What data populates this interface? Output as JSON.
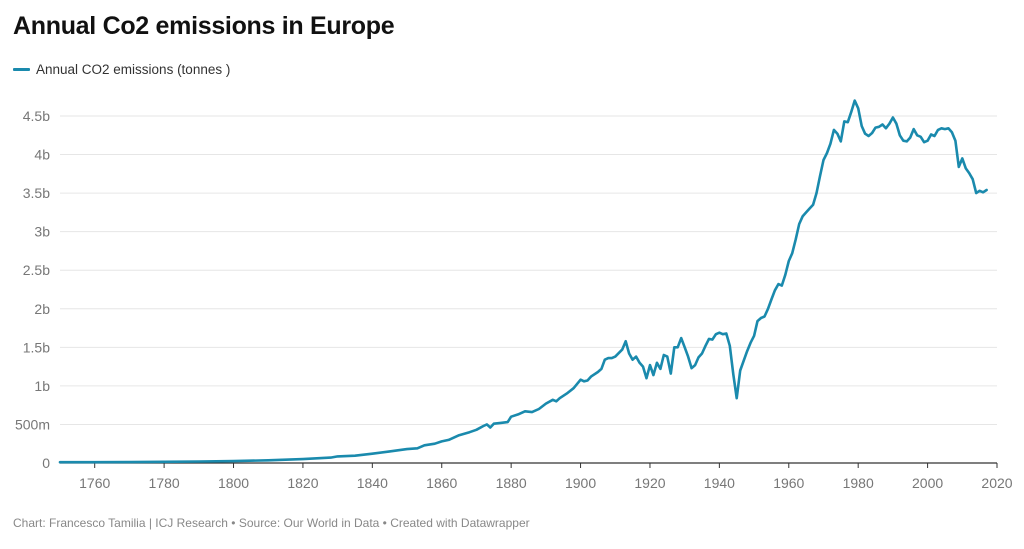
{
  "title": "Annual Co2 emissions in Europe",
  "footer": "Chart: Francesco Tamilia | ICJ Research • Source: Our World in Data • Created with Datawrapper",
  "colors": {
    "line": "#1a8aad",
    "grid": "#e6e6e6",
    "axis": "#333333",
    "tick_text": "#777777"
  },
  "chart_data": {
    "type": "line",
    "title": "Annual Co2 emissions in Europe",
    "xlabel": "",
    "ylabel": "",
    "xlim": [
      1750,
      2020
    ],
    "ylim": [
      0,
      4.5
    ],
    "grid": true,
    "legend": "top-left",
    "y_unit": "billion tonnes",
    "y_ticks": [
      0,
      0.5,
      1,
      1.5,
      2,
      2.5,
      3,
      3.5,
      4,
      4.5
    ],
    "y_tick_labels": [
      "0",
      "500m",
      "1b",
      "1.5b",
      "2b",
      "2.5b",
      "3b",
      "3.5b",
      "4b",
      "4.5b"
    ],
    "x_ticks": [
      1760,
      1780,
      1800,
      1820,
      1840,
      1860,
      1880,
      1900,
      1920,
      1940,
      1960,
      1980,
      2000,
      2020
    ],
    "x_tick_labels": [
      "1760",
      "1780",
      "1800",
      "1820",
      "1840",
      "1860",
      "1880",
      "1900",
      "1920",
      "1940",
      "1960",
      "1980",
      "2000",
      "2020"
    ],
    "series": [
      {
        "name": "Annual CO2 emissions (tonnes )",
        "points": [
          [
            1750,
            0.01
          ],
          [
            1760,
            0.01
          ],
          [
            1770,
            0.012
          ],
          [
            1780,
            0.015
          ],
          [
            1790,
            0.02
          ],
          [
            1800,
            0.025
          ],
          [
            1810,
            0.035
          ],
          [
            1820,
            0.05
          ],
          [
            1828,
            0.07
          ],
          [
            1830,
            0.085
          ],
          [
            1835,
            0.095
          ],
          [
            1840,
            0.12
          ],
          [
            1845,
            0.15
          ],
          [
            1850,
            0.18
          ],
          [
            1853,
            0.19
          ],
          [
            1855,
            0.23
          ],
          [
            1858,
            0.25
          ],
          [
            1860,
            0.28
          ],
          [
            1862,
            0.3
          ],
          [
            1865,
            0.36
          ],
          [
            1868,
            0.4
          ],
          [
            1870,
            0.43
          ],
          [
            1872,
            0.48
          ],
          [
            1873,
            0.5
          ],
          [
            1874,
            0.46
          ],
          [
            1875,
            0.51
          ],
          [
            1877,
            0.52
          ],
          [
            1879,
            0.53
          ],
          [
            1880,
            0.6
          ],
          [
            1882,
            0.63
          ],
          [
            1884,
            0.67
          ],
          [
            1886,
            0.66
          ],
          [
            1888,
            0.7
          ],
          [
            1890,
            0.77
          ],
          [
            1892,
            0.82
          ],
          [
            1893,
            0.8
          ],
          [
            1894,
            0.84
          ],
          [
            1896,
            0.9
          ],
          [
            1898,
            0.97
          ],
          [
            1900,
            1.08
          ],
          [
            1901,
            1.06
          ],
          [
            1902,
            1.07
          ],
          [
            1903,
            1.12
          ],
          [
            1905,
            1.18
          ],
          [
            1906,
            1.22
          ],
          [
            1907,
            1.34
          ],
          [
            1908,
            1.36
          ],
          [
            1909,
            1.36
          ],
          [
            1910,
            1.38
          ],
          [
            1912,
            1.47
          ],
          [
            1913,
            1.58
          ],
          [
            1914,
            1.42
          ],
          [
            1915,
            1.34
          ],
          [
            1916,
            1.38
          ],
          [
            1917,
            1.3
          ],
          [
            1918,
            1.25
          ],
          [
            1919,
            1.1
          ],
          [
            1920,
            1.27
          ],
          [
            1921,
            1.14
          ],
          [
            1922,
            1.3
          ],
          [
            1923,
            1.22
          ],
          [
            1924,
            1.4
          ],
          [
            1925,
            1.38
          ],
          [
            1926,
            1.16
          ],
          [
            1927,
            1.5
          ],
          [
            1928,
            1.5
          ],
          [
            1929,
            1.62
          ],
          [
            1930,
            1.5
          ],
          [
            1931,
            1.38
          ],
          [
            1932,
            1.23
          ],
          [
            1933,
            1.27
          ],
          [
            1934,
            1.37
          ],
          [
            1935,
            1.42
          ],
          [
            1936,
            1.52
          ],
          [
            1937,
            1.61
          ],
          [
            1938,
            1.6
          ],
          [
            1939,
            1.67
          ],
          [
            1940,
            1.69
          ],
          [
            1941,
            1.67
          ],
          [
            1942,
            1.68
          ],
          [
            1943,
            1.52
          ],
          [
            1944,
            1.15
          ],
          [
            1945,
            0.84
          ],
          [
            1946,
            1.2
          ],
          [
            1948,
            1.45
          ],
          [
            1949,
            1.56
          ],
          [
            1950,
            1.65
          ],
          [
            1951,
            1.84
          ],
          [
            1952,
            1.88
          ],
          [
            1953,
            1.9
          ],
          [
            1954,
            2.0
          ],
          [
            1955,
            2.12
          ],
          [
            1956,
            2.24
          ],
          [
            1957,
            2.32
          ],
          [
            1958,
            2.3
          ],
          [
            1959,
            2.44
          ],
          [
            1960,
            2.62
          ],
          [
            1961,
            2.72
          ],
          [
            1962,
            2.9
          ],
          [
            1963,
            3.1
          ],
          [
            1964,
            3.2
          ],
          [
            1965,
            3.25
          ],
          [
            1966,
            3.3
          ],
          [
            1967,
            3.35
          ],
          [
            1968,
            3.5
          ],
          [
            1969,
            3.72
          ],
          [
            1970,
            3.93
          ],
          [
            1971,
            4.02
          ],
          [
            1972,
            4.14
          ],
          [
            1973,
            4.32
          ],
          [
            1974,
            4.27
          ],
          [
            1975,
            4.17
          ],
          [
            1976,
            4.43
          ],
          [
            1977,
            4.42
          ],
          [
            1978,
            4.55
          ],
          [
            1979,
            4.7
          ],
          [
            1980,
            4.6
          ],
          [
            1981,
            4.37
          ],
          [
            1982,
            4.27
          ],
          [
            1983,
            4.24
          ],
          [
            1984,
            4.28
          ],
          [
            1985,
            4.35
          ],
          [
            1986,
            4.36
          ],
          [
            1987,
            4.39
          ],
          [
            1988,
            4.34
          ],
          [
            1989,
            4.4
          ],
          [
            1990,
            4.48
          ],
          [
            1991,
            4.4
          ],
          [
            1992,
            4.25
          ],
          [
            1993,
            4.18
          ],
          [
            1994,
            4.17
          ],
          [
            1995,
            4.22
          ],
          [
            1996,
            4.33
          ],
          [
            1997,
            4.25
          ],
          [
            1998,
            4.23
          ],
          [
            1999,
            4.16
          ],
          [
            2000,
            4.18
          ],
          [
            2001,
            4.26
          ],
          [
            2002,
            4.24
          ],
          [
            2003,
            4.32
          ],
          [
            2004,
            4.34
          ],
          [
            2005,
            4.33
          ],
          [
            2006,
            4.34
          ],
          [
            2007,
            4.29
          ],
          [
            2008,
            4.18
          ],
          [
            2009,
            3.84
          ],
          [
            2010,
            3.95
          ],
          [
            2011,
            3.82
          ],
          [
            2012,
            3.76
          ],
          [
            2013,
            3.68
          ],
          [
            2014,
            3.5
          ],
          [
            2015,
            3.53
          ],
          [
            2016,
            3.51
          ],
          [
            2017,
            3.54
          ]
        ]
      }
    ]
  }
}
